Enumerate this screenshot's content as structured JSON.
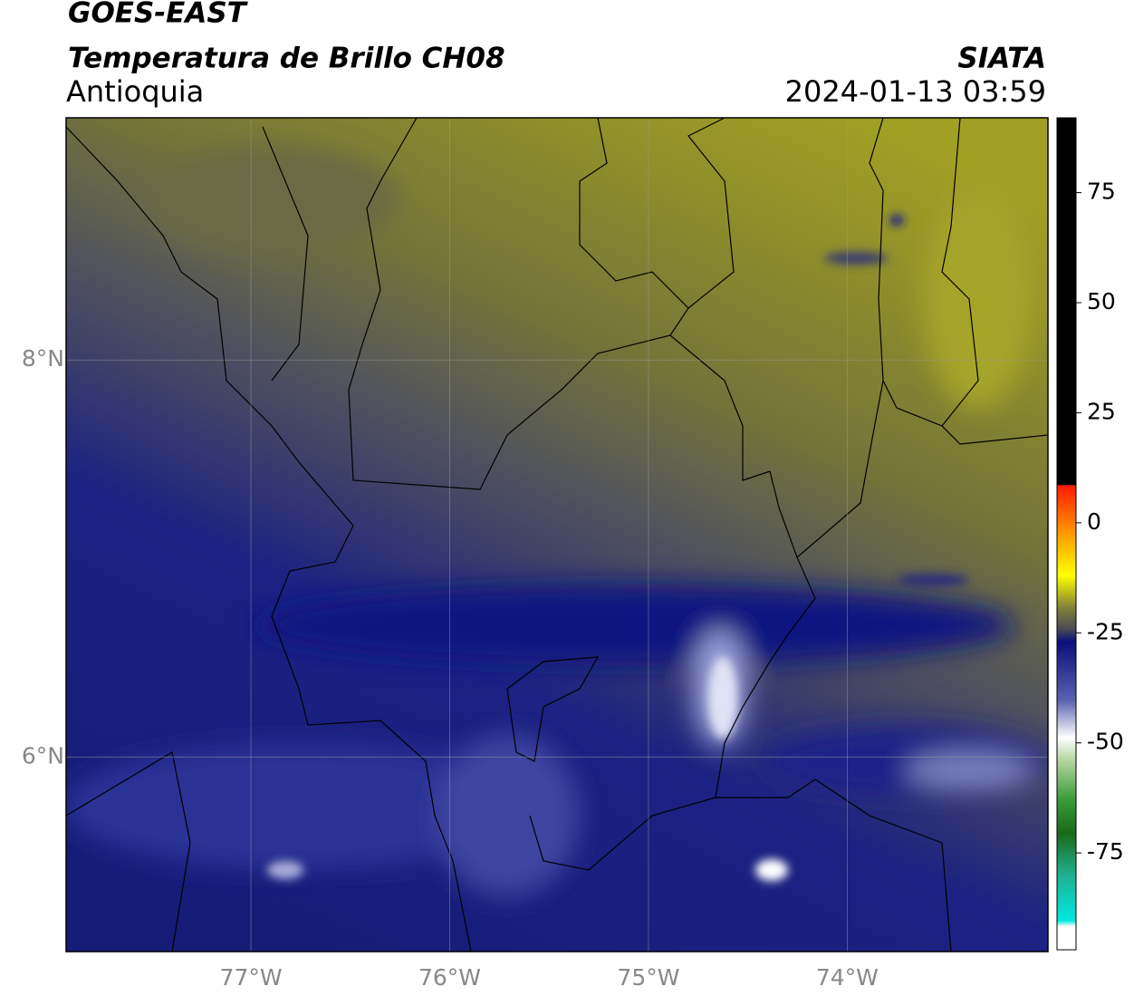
{
  "header": {
    "title": "GOES-EAST",
    "subtitle": "Temperatura de Brillo CH08",
    "region": "Antioquia",
    "source": "SIATA",
    "datetime": "2024-01-13 03:59"
  },
  "map": {
    "lonlim": [
      -77.93,
      -72.99
    ],
    "latlim": [
      5.02,
      9.22
    ],
    "lon_ticks": [
      {
        "value": -77,
        "label": "77°W"
      },
      {
        "value": -76,
        "label": "76°W"
      },
      {
        "value": -75,
        "label": "75°W"
      },
      {
        "value": -74,
        "label": "74°W"
      }
    ],
    "lat_ticks": [
      {
        "value": 8,
        "label": "8°N"
      },
      {
        "value": 6,
        "label": "6°N"
      }
    ]
  },
  "colorbar": {
    "lim": [
      -97,
      92
    ],
    "ticks": [
      75,
      50,
      25,
      0,
      -25,
      -50,
      -75
    ]
  }
}
